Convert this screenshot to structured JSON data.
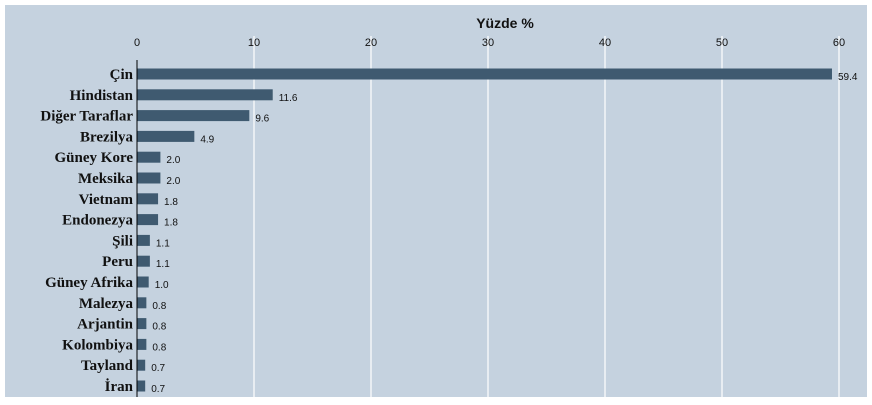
{
  "chart_data": {
    "type": "bar",
    "orientation": "horizontal",
    "title": "Yüzde %",
    "categories": [
      "Çin",
      "Hindistan",
      "Diğer Taraflar",
      "Brezilya",
      "Güney Kore",
      "Meksika",
      "Vietnam",
      "Endonezya",
      "Şili",
      "Peru",
      "Güney Afrika",
      "Malezya",
      "Arjantin",
      "Kolombiya",
      "Tayland",
      "İran"
    ],
    "values": [
      59.4,
      11.6,
      9.6,
      4.9,
      2.0,
      2.0,
      1.8,
      1.8,
      1.1,
      1.1,
      1.0,
      0.8,
      0.8,
      0.8,
      0.7,
      0.7
    ],
    "value_labels": [
      "59.4",
      "11.6",
      "9.6",
      "4.9",
      "2.0",
      "2.0",
      "1.8",
      "1.8",
      "1.1",
      "1.1",
      "1.0",
      "0.8",
      "0.8",
      "0.8",
      "0.7",
      "0.7"
    ],
    "xlim": [
      0,
      61.5
    ],
    "xticks": [
      0,
      10,
      20,
      30,
      40,
      50,
      60
    ],
    "xtick_labels": [
      "0",
      "10",
      "20",
      "30",
      "40",
      "50",
      "60"
    ],
    "x_axis_position": "top",
    "grid": true,
    "colors": {
      "background": "#c5d2df",
      "bar": "#3f5a70",
      "grid": "#ffffff",
      "axis": "#000000"
    }
  }
}
